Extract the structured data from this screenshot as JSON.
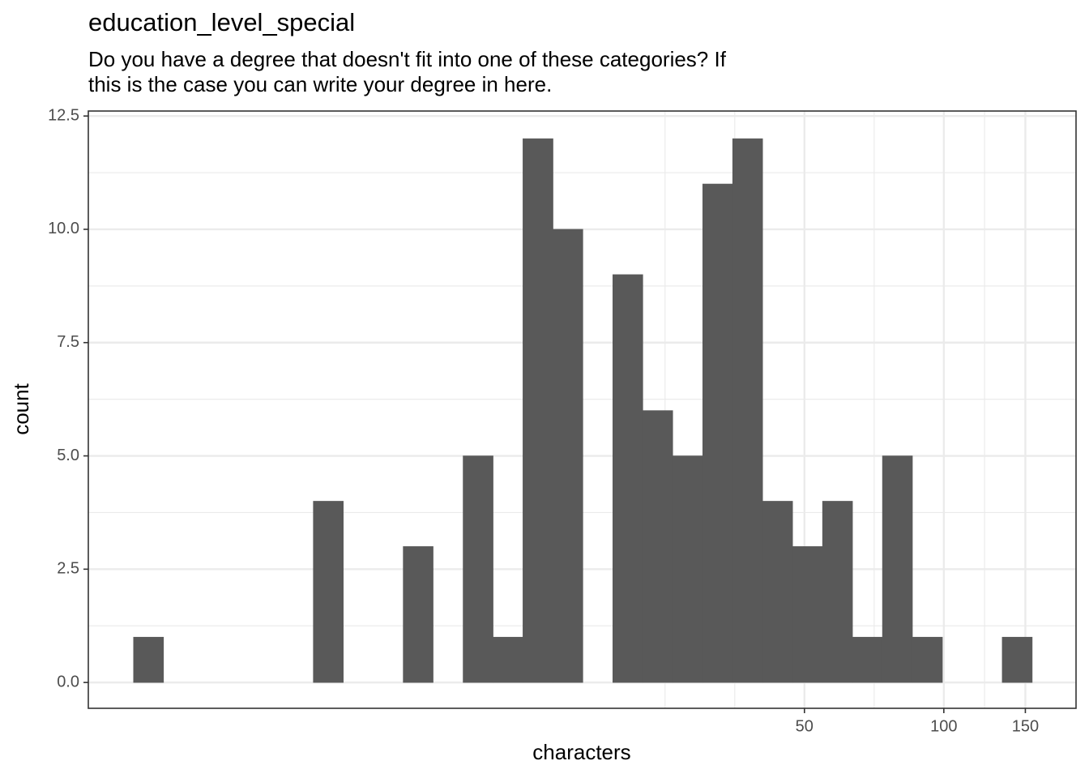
{
  "chart_data": {
    "type": "histogram",
    "title": "education_level_special",
    "subtitle": [
      "Do you have a degree that doesn't fit into one of these categories? If",
      "this is the case you can write your degree in here."
    ],
    "x_label": "characters",
    "y_label": "count",
    "log_x": true,
    "grid": true,
    "color": "#595959",
    "bins": [
      1.778,
      2.064,
      2.395,
      2.781,
      3.228,
      3.747,
      4.348,
      5.047,
      5.857,
      6.798,
      7.889,
      9.157,
      10.63,
      12.33,
      14.32,
      16.61,
      19.28,
      22.38,
      25.97,
      30.15,
      34.99,
      40.61,
      47.14,
      54.71,
      63.5,
      73.7,
      85.54,
      99.29,
      115.2,
      133.7,
      155.2
    ],
    "values": [
      1,
      0,
      0,
      0,
      0,
      0,
      4,
      0,
      0,
      3,
      0,
      5,
      1,
      12,
      10,
      0,
      9,
      6,
      5,
      11,
      12,
      4,
      3,
      4,
      1,
      5,
      1,
      0,
      0,
      1
    ],
    "xlim": [
      1.42,
      193
    ],
    "xticks": [
      50,
      100,
      150
    ],
    "ylim": [
      -0.57,
      12.61
    ],
    "yticks": [
      {
        "value": 0,
        "label": "0.0"
      },
      2.5,
      {
        "value": 5,
        "label": "5.0"
      },
      7.5,
      {
        "value": 10,
        "label": "10.0"
      },
      12.5
    ]
  }
}
